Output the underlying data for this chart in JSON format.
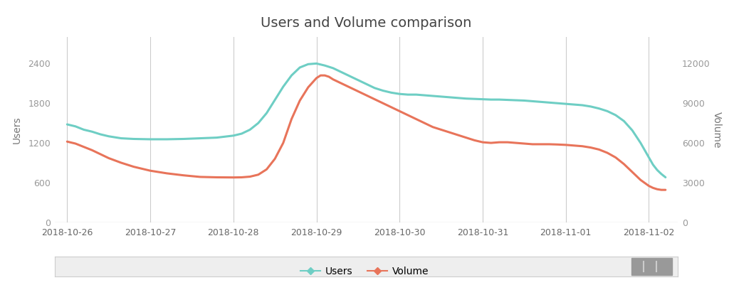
{
  "title": "Users and Volume comparison",
  "ylabel_left": "Users",
  "ylabel_right": "Volume",
  "background_color": "#ffffff",
  "grid_color": "#cccccc",
  "users_color": "#6ecec4",
  "volume_color": "#e8745a",
  "x_labels": [
    "2018-10-26",
    "2018-10-27",
    "2018-10-28",
    "2018-10-29",
    "2018-10-30",
    "2018-10-31",
    "2018-11-01",
    "2018-11-02"
  ],
  "users_data": [
    [
      0.0,
      1480
    ],
    [
      0.1,
      1450
    ],
    [
      0.2,
      1400
    ],
    [
      0.3,
      1370
    ],
    [
      0.4,
      1330
    ],
    [
      0.5,
      1300
    ],
    [
      0.65,
      1270
    ],
    [
      0.8,
      1260
    ],
    [
      1.0,
      1255
    ],
    [
      1.2,
      1255
    ],
    [
      1.4,
      1260
    ],
    [
      1.6,
      1270
    ],
    [
      1.8,
      1280
    ],
    [
      2.0,
      1310
    ],
    [
      2.1,
      1340
    ],
    [
      2.2,
      1400
    ],
    [
      2.3,
      1500
    ],
    [
      2.4,
      1650
    ],
    [
      2.5,
      1850
    ],
    [
      2.6,
      2050
    ],
    [
      2.7,
      2220
    ],
    [
      2.8,
      2340
    ],
    [
      2.9,
      2390
    ],
    [
      3.0,
      2400
    ],
    [
      3.1,
      2370
    ],
    [
      3.2,
      2330
    ],
    [
      3.3,
      2270
    ],
    [
      3.4,
      2210
    ],
    [
      3.5,
      2150
    ],
    [
      3.6,
      2090
    ],
    [
      3.7,
      2030
    ],
    [
      3.8,
      1990
    ],
    [
      3.9,
      1960
    ],
    [
      4.0,
      1940
    ],
    [
      4.1,
      1930
    ],
    [
      4.2,
      1930
    ],
    [
      4.3,
      1920
    ],
    [
      4.4,
      1910
    ],
    [
      4.5,
      1900
    ],
    [
      4.6,
      1890
    ],
    [
      4.7,
      1880
    ],
    [
      4.8,
      1870
    ],
    [
      4.9,
      1865
    ],
    [
      5.0,
      1860
    ],
    [
      5.1,
      1855
    ],
    [
      5.2,
      1855
    ],
    [
      5.3,
      1850
    ],
    [
      5.4,
      1845
    ],
    [
      5.5,
      1840
    ],
    [
      5.6,
      1830
    ],
    [
      5.7,
      1820
    ],
    [
      5.8,
      1810
    ],
    [
      5.9,
      1800
    ],
    [
      6.0,
      1790
    ],
    [
      6.1,
      1780
    ],
    [
      6.2,
      1770
    ],
    [
      6.3,
      1750
    ],
    [
      6.4,
      1720
    ],
    [
      6.5,
      1680
    ],
    [
      6.6,
      1620
    ],
    [
      6.7,
      1530
    ],
    [
      6.8,
      1390
    ],
    [
      6.9,
      1200
    ],
    [
      7.0,
      980
    ],
    [
      7.05,
      870
    ],
    [
      7.1,
      790
    ],
    [
      7.15,
      730
    ],
    [
      7.2,
      680
    ]
  ],
  "volume_data": [
    [
      0.0,
      6100
    ],
    [
      0.1,
      5950
    ],
    [
      0.2,
      5700
    ],
    [
      0.3,
      5450
    ],
    [
      0.4,
      5150
    ],
    [
      0.5,
      4850
    ],
    [
      0.65,
      4500
    ],
    [
      0.8,
      4200
    ],
    [
      1.0,
      3900
    ],
    [
      1.2,
      3700
    ],
    [
      1.4,
      3550
    ],
    [
      1.6,
      3430
    ],
    [
      1.8,
      3400
    ],
    [
      2.0,
      3390
    ],
    [
      2.1,
      3400
    ],
    [
      2.2,
      3450
    ],
    [
      2.3,
      3600
    ],
    [
      2.4,
      4000
    ],
    [
      2.5,
      4800
    ],
    [
      2.6,
      6000
    ],
    [
      2.7,
      7800
    ],
    [
      2.8,
      9200
    ],
    [
      2.9,
      10200
    ],
    [
      3.0,
      10900
    ],
    [
      3.05,
      11100
    ],
    [
      3.1,
      11100
    ],
    [
      3.15,
      11000
    ],
    [
      3.2,
      10800
    ],
    [
      3.3,
      10500
    ],
    [
      3.4,
      10200
    ],
    [
      3.5,
      9900
    ],
    [
      3.6,
      9600
    ],
    [
      3.7,
      9300
    ],
    [
      3.8,
      9000
    ],
    [
      3.9,
      8700
    ],
    [
      4.0,
      8400
    ],
    [
      4.1,
      8100
    ],
    [
      4.2,
      7800
    ],
    [
      4.3,
      7500
    ],
    [
      4.4,
      7200
    ],
    [
      4.5,
      7000
    ],
    [
      4.6,
      6800
    ],
    [
      4.7,
      6600
    ],
    [
      4.8,
      6400
    ],
    [
      4.9,
      6200
    ],
    [
      5.0,
      6050
    ],
    [
      5.1,
      6000
    ],
    [
      5.2,
      6050
    ],
    [
      5.3,
      6050
    ],
    [
      5.4,
      6000
    ],
    [
      5.5,
      5950
    ],
    [
      5.6,
      5900
    ],
    [
      5.7,
      5900
    ],
    [
      5.8,
      5900
    ],
    [
      5.9,
      5880
    ],
    [
      6.0,
      5850
    ],
    [
      6.1,
      5800
    ],
    [
      6.2,
      5750
    ],
    [
      6.3,
      5650
    ],
    [
      6.4,
      5500
    ],
    [
      6.5,
      5250
    ],
    [
      6.6,
      4900
    ],
    [
      6.7,
      4400
    ],
    [
      6.8,
      3800
    ],
    [
      6.9,
      3200
    ],
    [
      7.0,
      2750
    ],
    [
      7.05,
      2600
    ],
    [
      7.1,
      2500
    ],
    [
      7.15,
      2450
    ],
    [
      7.2,
      2450
    ]
  ],
  "ylim_left": [
    0,
    2800
  ],
  "ylim_right": [
    0,
    14000
  ],
  "yticks_left": [
    0,
    600,
    1200,
    1800,
    2400
  ],
  "yticks_right": [
    0,
    3000,
    6000,
    9000,
    12000
  ],
  "xlim": [
    -0.15,
    7.35
  ],
  "title_fontsize": 14,
  "label_fontsize": 10,
  "tick_fontsize": 9,
  "line_width": 2.2
}
